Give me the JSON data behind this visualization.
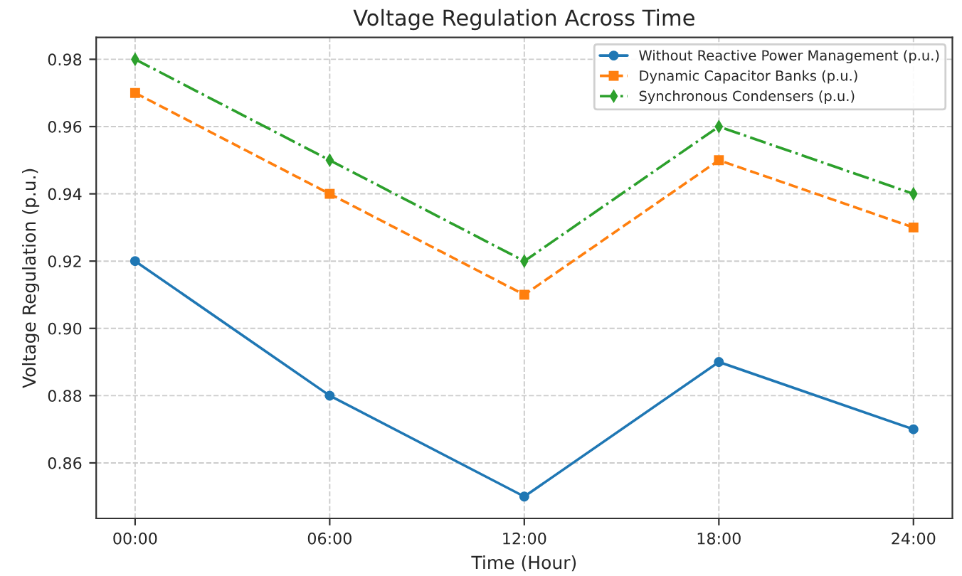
{
  "chart_data": {
    "type": "line",
    "title": "Voltage Regulation Across Time",
    "xlabel": "Time (Hour)",
    "ylabel": "Voltage Regulation (p.u.)",
    "categories": [
      "00:00",
      "06:00",
      "12:00",
      "18:00",
      "24:00"
    ],
    "series": [
      {
        "name": "Without Reactive Power Management (p.u.)",
        "color": "#1f77b4",
        "values": [
          0.92,
          0.88,
          0.85,
          0.89,
          0.87
        ],
        "marker": "circle",
        "line_style": "solid"
      },
      {
        "name": "Dynamic Capacitor Banks (p.u.)",
        "color": "#ff7f0e",
        "values": [
          0.97,
          0.94,
          0.91,
          0.95,
          0.93
        ],
        "marker": "square",
        "line_style": "dashed"
      },
      {
        "name": "Synchronous Condensers (p.u.)",
        "color": "#2ca02c",
        "values": [
          0.98,
          0.95,
          0.92,
          0.96,
          0.94
        ],
        "marker": "diamond",
        "line_style": "dashdot"
      }
    ],
    "ylim": [
      0.8435,
      0.9865
    ],
    "yticks": [
      0.86,
      0.88,
      {
        "value": 0.9,
        "label": "0.90"
      },
      0.92,
      0.94,
      0.96,
      0.98
    ],
    "grid": true,
    "legend": "top right"
  }
}
